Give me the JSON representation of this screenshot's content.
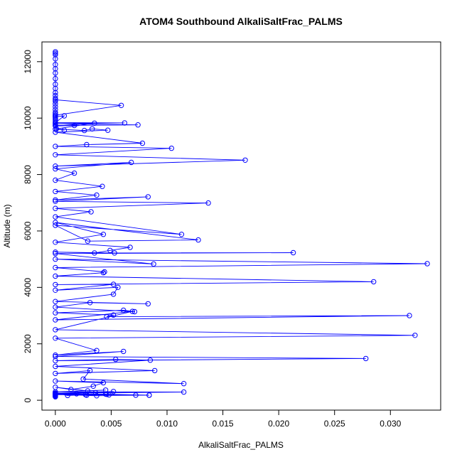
{
  "chart_data": {
    "type": "line",
    "title": "ATOM4 Southbound AlkaliSaltFrac_PALMS",
    "xlabel": "AlkaliSaltFrac_PALMS",
    "ylabel": "Altitude (m)",
    "xlim": [
      -0.0012,
      0.0345
    ],
    "ylim": [
      -350,
      12700
    ],
    "x_ticks": [
      0.0,
      0.005,
      0.01,
      0.015,
      0.02,
      0.025,
      0.03
    ],
    "x_tick_labels": [
      "0.000",
      "0.005",
      "0.010",
      "0.015",
      "0.020",
      "0.025",
      "0.030"
    ],
    "y_ticks": [
      0,
      2000,
      4000,
      6000,
      8000,
      10000,
      12000
    ],
    "y_tick_labels": [
      "0",
      "2000",
      "4000",
      "6000",
      "8000",
      "10000",
      "12000"
    ],
    "grid": false,
    "legend": "none",
    "colors": {
      "series": "#0000ff",
      "axes": "#000000",
      "background": "#ffffff"
    },
    "marker": "open-circle",
    "series": [
      {
        "values_note": "",
        "x": [
          0,
          0,
          0,
          0,
          0,
          0,
          0,
          0,
          0,
          0,
          0,
          0,
          0,
          0,
          0,
          0,
          0,
          0,
          0,
          0,
          0,
          0,
          0,
          0,
          0,
          0,
          0,
          0,
          0.0059,
          0,
          0,
          0.0008,
          0,
          0.0062,
          0,
          0.0074,
          0,
          0.0017,
          0,
          0.0035,
          0.0001,
          0.0008,
          0,
          0.0026,
          0.0033,
          0.0047,
          0,
          0.0078,
          0.0028,
          0,
          0.0104,
          0,
          0.017,
          0,
          0.0068,
          0,
          0.0017,
          0,
          0.0042,
          0,
          0.0037,
          0,
          0.0083,
          0,
          0.0137,
          0,
          0.0032,
          0,
          0.0113,
          0,
          0.0029,
          0.0128,
          0,
          0.0043,
          0,
          0.0067,
          0.0049,
          0.0035,
          0,
          0.0053,
          0.0213,
          0,
          0.0088,
          0,
          0.0333,
          0,
          0.0044,
          0.0043,
          0,
          0.0285,
          0,
          0.0052,
          0,
          0.0056,
          0.0052,
          0,
          0.0083,
          0.0031,
          0,
          0.0071,
          0.0061,
          0,
          0.0052,
          0.0046,
          0.0317,
          0,
          0.0069,
          0,
          0.0322,
          0,
          0.0037,
          0,
          0.0061,
          0,
          0.0278,
          0,
          0.0054,
          0.0085,
          0,
          0.0089,
          0,
          0.0031,
          0.0025,
          0.0115,
          0,
          0.0043,
          0.0034,
          0.0014,
          0,
          0.0029,
          0.0045,
          0,
          0.0115,
          0,
          0.0052,
          0.0036,
          0,
          0.0028,
          0.0048,
          0,
          0.0037,
          0.0072,
          0,
          0.0084,
          0,
          0.0045,
          0.0011,
          0,
          0.0084,
          0.0046,
          0,
          0.0027,
          0,
          0.0019,
          0,
          0,
          0,
          0,
          0,
          0
        ],
        "y": [
          12350,
          12300,
          12250,
          12100,
          11900,
          11750,
          11600,
          11400,
          11200,
          11050,
          10900,
          10800,
          10700,
          10600,
          10500,
          10400,
          10300,
          10200,
          10150,
          10100,
          10050,
          10000,
          9950,
          9900,
          9850,
          9800,
          9750,
          10650,
          10450,
          10100,
          10050,
          10080,
          9840,
          9830,
          9800,
          9760,
          9740,
          9740,
          9720,
          9820,
          9620,
          9570,
          9610,
          9560,
          9620,
          9570,
          9500,
          9110,
          9060,
          9000,
          8930,
          8700,
          8510,
          8300,
          8430,
          8200,
          8050,
          7800,
          7580,
          7400,
          7270,
          7100,
          7210,
          7050,
          6990,
          6800,
          6680,
          6500,
          5880,
          6200,
          5640,
          5680,
          6300,
          5880,
          5600,
          5420,
          5310,
          5220,
          5250,
          5220,
          5230,
          5200,
          4830,
          5000,
          4840,
          4700,
          4550,
          4520,
          4400,
          4200,
          4100,
          4110,
          3900,
          4000,
          3760,
          3500,
          3420,
          3460,
          3300,
          3140,
          3190,
          3100,
          3020,
          2960,
          3000,
          2850,
          3150,
          2500,
          2300,
          2200,
          1760,
          1600,
          1730,
          1550,
          1480,
          1400,
          1450,
          1420,
          1200,
          1050,
          950,
          1050,
          750,
          590,
          680,
          620,
          500,
          380,
          460,
          330,
          360,
          300,
          290,
          250,
          310,
          270,
          230,
          180,
          190,
          210,
          160,
          180,
          220,
          180,
          200,
          220,
          170,
          250,
          180,
          210,
          250,
          200,
          260,
          230,
          200,
          180,
          160,
          150,
          130,
          120
        ]
      }
    ]
  }
}
